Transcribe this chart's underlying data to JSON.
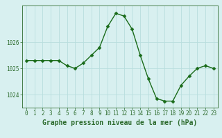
{
  "x": [
    0,
    1,
    2,
    3,
    4,
    5,
    6,
    7,
    8,
    9,
    10,
    11,
    12,
    13,
    14,
    15,
    16,
    17,
    18,
    19,
    20,
    21,
    22,
    23
  ],
  "y": [
    1025.3,
    1025.3,
    1025.3,
    1025.3,
    1025.3,
    1025.1,
    1025.0,
    1025.2,
    1025.5,
    1025.8,
    1026.6,
    1027.1,
    1027.0,
    1026.5,
    1025.5,
    1024.6,
    1023.85,
    1023.75,
    1023.75,
    1024.35,
    1024.7,
    1025.0,
    1025.1,
    1025.0
  ],
  "line_color": "#1a6b1a",
  "marker_color": "#1a6b1a",
  "bg_color": "#d8f0f0",
  "grid_color": "#b8dede",
  "axis_color": "#2d6b2d",
  "xlabel": "Graphe pression niveau de la mer (hPa)",
  "ylim": [
    1023.5,
    1027.4
  ],
  "yticks": [
    1024,
    1025,
    1026
  ],
  "xticks": [
    0,
    1,
    2,
    3,
    4,
    5,
    6,
    7,
    8,
    9,
    10,
    11,
    12,
    13,
    14,
    15,
    16,
    17,
    18,
    19,
    20,
    21,
    22,
    23
  ],
  "tick_fontsize": 5.5,
  "label_fontsize": 7.0,
  "line_width": 1.0,
  "marker_size": 2.5
}
